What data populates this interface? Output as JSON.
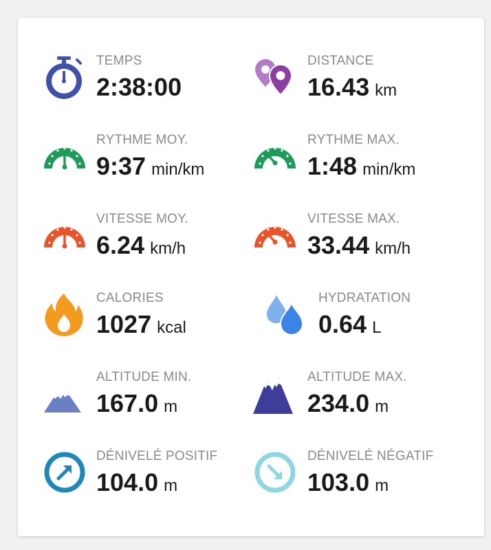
{
  "stats": [
    {
      "label": "TEMPS",
      "value": "2:38:00",
      "unit": "",
      "icon": "stopwatch-icon",
      "color": "#3f51a8"
    },
    {
      "label": "DISTANCE",
      "value": "16.43",
      "unit": "km",
      "icon": "map-pins-icon",
      "color": "#8c3fa0"
    },
    {
      "label": "RYTHME MOY.",
      "value": "9:37",
      "unit": "min/km",
      "icon": "gauge-medium-icon",
      "color": "#1e9a5b"
    },
    {
      "label": "RYTHME MAX.",
      "value": "1:48",
      "unit": "min/km",
      "icon": "gauge-high-icon",
      "color": "#1e9a5b"
    },
    {
      "label": "VITESSE MOY.",
      "value": "6.24",
      "unit": "km/h",
      "icon": "gauge-medium-icon",
      "color": "#e8532a"
    },
    {
      "label": "VITESSE MAX.",
      "value": "33.44",
      "unit": "km/h",
      "icon": "gauge-high-icon",
      "color": "#e8532a"
    },
    {
      "label": "CALORIES",
      "value": "1027",
      "unit": "kcal",
      "icon": "flame-icon",
      "color": "#f39a1f"
    },
    {
      "label": "HYDRATATION",
      "value": "0.64",
      "unit": "L",
      "icon": "water-drops-icon",
      "color": "#3d82e6"
    },
    {
      "label": "ALTITUDE MIN.",
      "value": "167.0",
      "unit": "m",
      "icon": "mountain-low-icon",
      "color": "#6a7fc4"
    },
    {
      "label": "ALTITUDE MAX.",
      "value": "234.0",
      "unit": "m",
      "icon": "mountain-high-icon",
      "color": "#3e3e9a"
    },
    {
      "label": "DÉNIVELÉ POSITIF",
      "value": "104.0",
      "unit": "m",
      "icon": "arrow-up-circle-icon",
      "color": "#1f88b8"
    },
    {
      "label": "DÉNIVELÉ NÉGATIF",
      "value": "103.0",
      "unit": "m",
      "icon": "arrow-down-circle-icon",
      "color": "#8fd6e3"
    }
  ]
}
